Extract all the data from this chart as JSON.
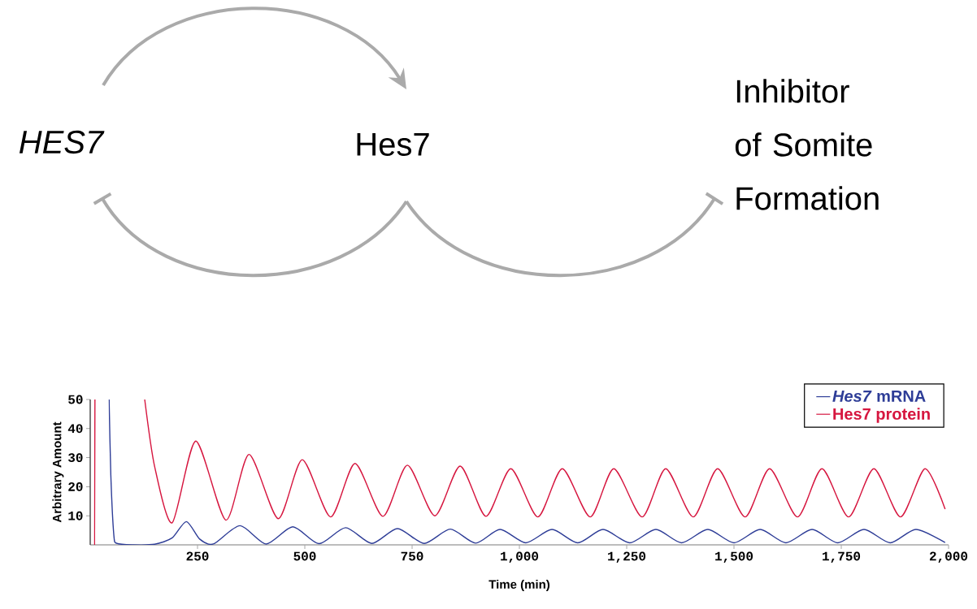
{
  "chart_data": {
    "type": "line",
    "xlabel": "Time (min)",
    "ylabel": "Arbitrary Amount",
    "annotations": [
      "HES7",
      "Hes7",
      "Inhibitor of Somite Formation"
    ],
    "xlim": [
      0,
      2000
    ],
    "ylim": [
      0,
      50
    ],
    "xticks": [
      250,
      500,
      750,
      {
        "value": 1000,
        "label": "1,000"
      },
      {
        "value": 1250,
        "label": "1,250"
      },
      {
        "value": 1500,
        "label": "1,500"
      },
      {
        "value": 1750,
        "label": "1,750"
      },
      {
        "value": 2000,
        "label": "2,000"
      }
    ],
    "yticks": [
      10,
      20,
      30,
      40,
      50
    ],
    "legend": "top right",
    "grid": false,
    "marker": "none",
    "line_style": "solid",
    "series": [
      {
        "name": "*Hes7* mRNA",
        "color": "#2e3d97",
        "x": [
          44,
          48,
          55,
          62,
          100,
          150,
          191,
          224,
          255,
          287,
          349,
          410,
          472,
          533,
          595,
          656,
          716,
          778,
          839,
          898,
          955,
          1015,
          1076,
          1136,
          1195,
          1257,
          1318,
          1378,
          1439,
          1500,
          1561,
          1621,
          1682,
          1742,
          1803,
          1864,
          1924,
          1992
        ],
        "values": [
          50,
          24,
          3.4,
          0.5,
          0,
          0.2,
          2.4,
          8,
          2,
          0.3,
          6.6,
          0.3,
          6.2,
          0.4,
          5.9,
          0.5,
          5.6,
          0.5,
          5.4,
          0.6,
          5.3,
          0.7,
          5.3,
          0.7,
          5.3,
          0.7,
          5.3,
          0.7,
          5.3,
          0.7,
          5.3,
          0.7,
          5.3,
          0.7,
          5.3,
          0.7,
          5.3,
          0.8
        ]
      },
      {
        "name": "Hes7 protein",
        "color": "#d6163f",
        "x": [
          10,
          11,
          60,
          127,
          150,
          191,
          246,
          316,
          370,
          438,
          494,
          560,
          617,
          682,
          739,
          803,
          862,
          922,
          980,
          1043,
          1100,
          1165,
          1220,
          1286,
          1341,
          1405,
          1462,
          1526,
          1583,
          1648,
          1705,
          1767,
          1826,
          1888,
          1945,
          1992
        ],
        "values": [
          0,
          50,
          null,
          50,
          27,
          7.6,
          35.7,
          8.5,
          31.1,
          9,
          29.3,
          9.6,
          28,
          9.8,
          27.4,
          10,
          27.1,
          9.8,
          26.2,
          9.6,
          26.2,
          9.6,
          26.2,
          9.6,
          26.2,
          9.6,
          26.2,
          9.6,
          26.2,
          9.6,
          26.2,
          9.6,
          26.2,
          9.6,
          26.2,
          12.3
        ]
      }
    ]
  }
}
